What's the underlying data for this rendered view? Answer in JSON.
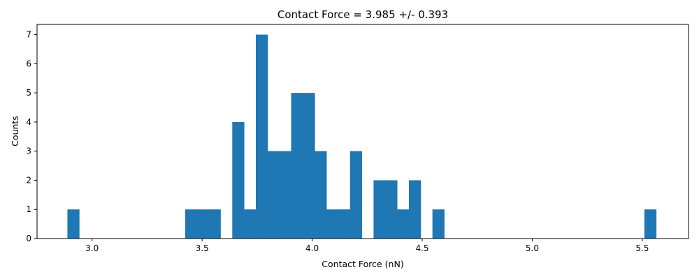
{
  "chart_data": {
    "type": "bar",
    "title": "Contact Force = 3.985 +/- 0.393",
    "xlabel": "Contact Force (nN)",
    "ylabel": "Counts",
    "xlim": [
      2.75,
      5.71
    ],
    "ylim": [
      0,
      7.35
    ],
    "xticks": [
      3.0,
      3.5,
      4.0,
      4.5,
      5.0,
      5.5
    ],
    "xtick_labels": [
      "3.0",
      "3.5",
      "4.0",
      "4.5",
      "5.0",
      "5.5"
    ],
    "yticks": [
      0,
      1,
      2,
      3,
      4,
      5,
      6,
      7
    ],
    "ytick_labels": [
      "0",
      "1",
      "2",
      "3",
      "4",
      "5",
      "6",
      "7"
    ],
    "bin_start": 2.888,
    "bin_width": 0.0535,
    "counts": [
      1,
      0,
      0,
      0,
      0,
      0,
      0,
      0,
      0,
      0,
      1,
      1,
      1,
      0,
      4,
      1,
      7,
      3,
      3,
      5,
      5,
      3,
      1,
      1,
      3,
      0,
      2,
      2,
      1,
      2,
      0,
      1,
      0,
      0,
      0,
      0,
      0,
      0,
      0,
      0,
      0,
      0,
      0,
      0,
      0,
      0,
      0,
      0,
      0,
      1
    ],
    "bar_color": "#1f77b4",
    "grid": false
  }
}
